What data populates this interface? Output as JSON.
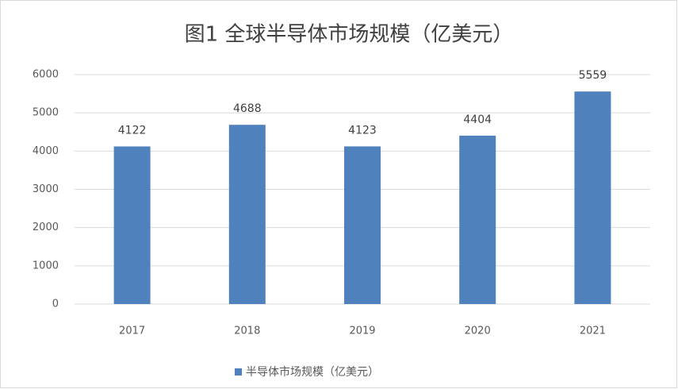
{
  "chart_data": {
    "type": "bar",
    "title": "图1  全球半导体市场规模（亿美元）",
    "categories": [
      "2017",
      "2018",
      "2019",
      "2020",
      "2021"
    ],
    "series": [
      {
        "name": "半导体市场规模（亿美元）",
        "color": "#4f81bd",
        "values": [
          4122,
          4688,
          4123,
          4404,
          5559
        ]
      }
    ],
    "ylim": [
      0,
      6000
    ],
    "yticks": [
      0,
      1000,
      2000,
      3000,
      4000,
      5000,
      6000
    ],
    "grid": true,
    "legend": "bottom"
  }
}
